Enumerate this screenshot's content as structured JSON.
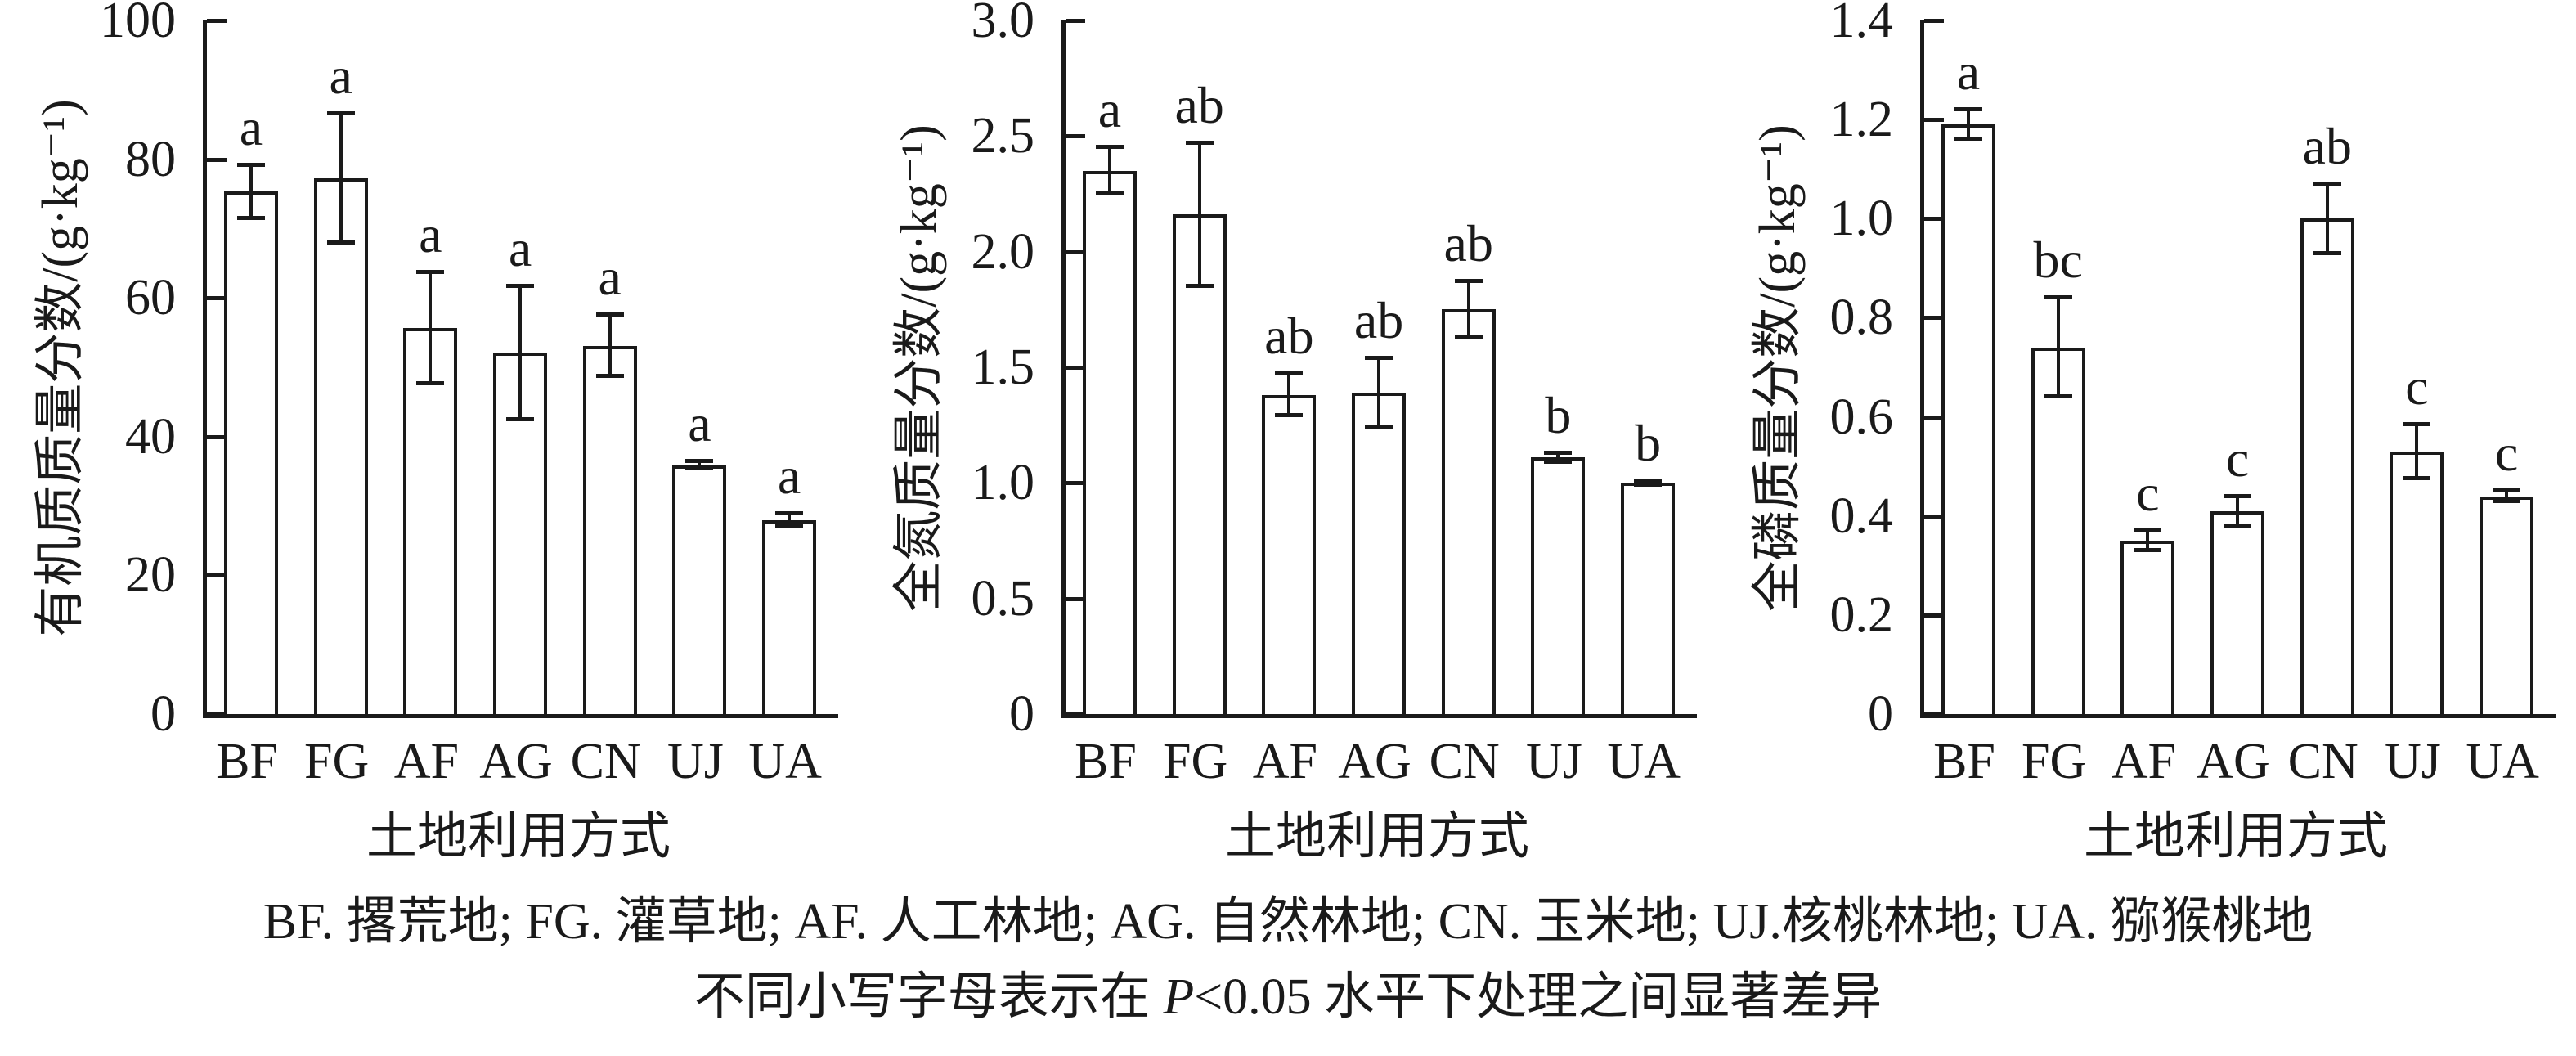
{
  "figure": {
    "caption_line1": "BF. 撂荒地; FG. 灌草地; AF. 人工林地; AG. 自然林地; CN. 玉米地; UJ.核桃林地; UA. 猕猴桃地",
    "caption_line2_prefix": "不同小写字母表示在 ",
    "caption_line2_italic": "P",
    "caption_line2_suffix": "<0.05 水平下处理之间显著差异"
  },
  "chart_data": [
    {
      "type": "bar",
      "title": "",
      "ylabel": "有机质质量分数/(g·kg⁻¹)",
      "xlabel": "土地利用方式",
      "categories": [
        "BF",
        "FG",
        "AF",
        "AG",
        "CN",
        "UJ",
        "UA"
      ],
      "values": [
        75.3,
        77.2,
        55.7,
        52.1,
        53.1,
        35.9,
        28.0
      ],
      "errors": [
        3.8,
        9.3,
        8.0,
        9.6,
        4.4,
        0.5,
        0.9
      ],
      "sig_letters": [
        "a",
        "a",
        "a",
        "a",
        "a",
        "a",
        "a"
      ],
      "ylim": [
        0,
        100
      ],
      "yticks": [
        0,
        20,
        40,
        60,
        80,
        100
      ],
      "ytick_labels": [
        "0",
        "20",
        "40",
        "60",
        "80",
        "100"
      ],
      "grid": false,
      "bar_fill": "#ffffff",
      "bar_stroke": "#1a1a1a"
    },
    {
      "type": "bar",
      "title": "",
      "ylabel": "全氮质量分数/(g·kg⁻¹)",
      "xlabel": "土地利用方式",
      "categories": [
        "BF",
        "FG",
        "AF",
        "AG",
        "CN",
        "UJ",
        "UA"
      ],
      "values": [
        2.35,
        2.16,
        1.38,
        1.39,
        1.75,
        1.11,
        1.0
      ],
      "errors": [
        0.1,
        0.31,
        0.09,
        0.15,
        0.12,
        0.02,
        0.01
      ],
      "sig_letters": [
        "a",
        "ab",
        "ab",
        "ab",
        "ab",
        "b",
        "b"
      ],
      "ylim": [
        0,
        3.0
      ],
      "yticks": [
        0,
        0.5,
        1.0,
        1.5,
        2.0,
        2.5,
        3.0
      ],
      "ytick_labels": [
        "0",
        "0.5",
        "1.0",
        "1.5",
        "2.0",
        "2.5",
        "3.0"
      ],
      "grid": false,
      "bar_fill": "#ffffff",
      "bar_stroke": "#1a1a1a"
    },
    {
      "type": "bar",
      "title": "",
      "ylabel": "全磷质量分数/(g·kg⁻¹)",
      "xlabel": "土地利用方式",
      "categories": [
        "BF",
        "FG",
        "AF",
        "AG",
        "CN",
        "UJ",
        "UA"
      ],
      "values": [
        1.19,
        0.74,
        0.35,
        0.41,
        1.0,
        0.53,
        0.44
      ],
      "errors": [
        0.03,
        0.1,
        0.02,
        0.03,
        0.07,
        0.055,
        0.01
      ],
      "sig_letters": [
        "a",
        "bc",
        "c",
        "c",
        "ab",
        "c",
        "c"
      ],
      "ylim": [
        0,
        1.4
      ],
      "yticks": [
        0,
        0.2,
        0.4,
        0.6,
        0.8,
        1.0,
        1.2,
        1.4
      ],
      "ytick_labels": [
        "0",
        "0.2",
        "0.4",
        "0.6",
        "0.8",
        "1.0",
        "1.2",
        "1.4"
      ],
      "grid": false,
      "bar_fill": "#ffffff",
      "bar_stroke": "#1a1a1a"
    }
  ]
}
